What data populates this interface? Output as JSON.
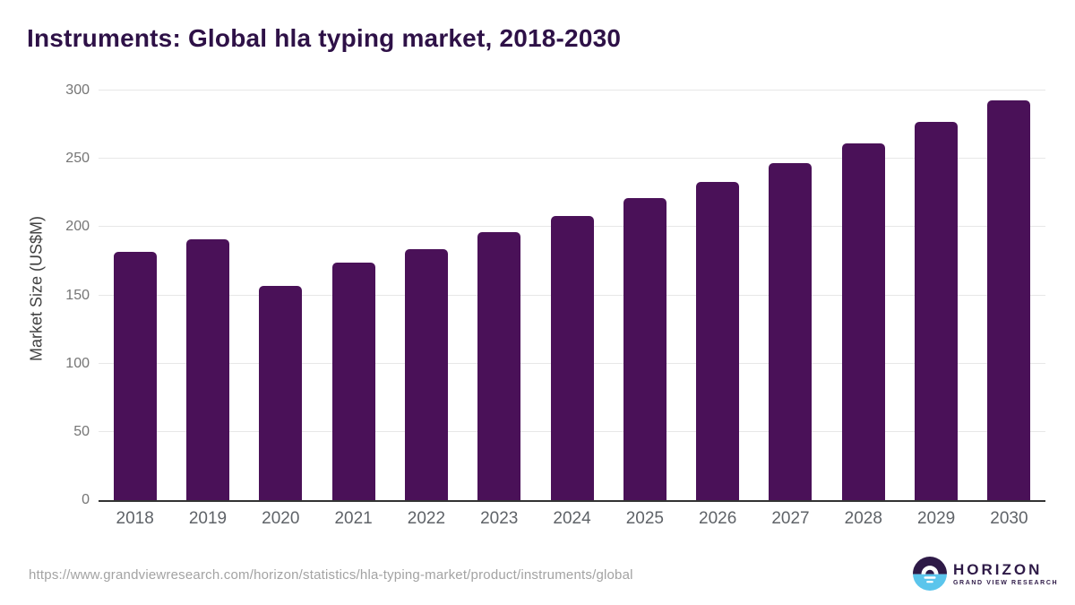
{
  "title": "Instruments: Global hla typing market, 2018-2030",
  "chart_data": {
    "type": "bar",
    "title": "Instruments: Global hla typing market, 2018-2030",
    "categories": [
      "2018",
      "2019",
      "2020",
      "2021",
      "2022",
      "2023",
      "2024",
      "2025",
      "2026",
      "2027",
      "2028",
      "2029",
      "2030"
    ],
    "values": [
      182,
      191,
      157,
      174,
      184,
      196,
      208,
      221,
      233,
      247,
      261,
      277,
      293
    ],
    "xlabel": "",
    "ylabel": "Market Size (US$M)",
    "ylim": [
      0,
      300
    ],
    "yticks": [
      0,
      50,
      100,
      150,
      200,
      250,
      300
    ],
    "grid": true,
    "legend": false,
    "bar_corner_radius": "rounded-top"
  },
  "footer": {
    "source_url": "https://www.grandviewresearch.com/horizon/statistics/hla-typing-market/product/instruments/global",
    "logo": {
      "brand": "HORIZON",
      "sub_brand": "GRAND VIEW RESEARCH"
    }
  },
  "colors": {
    "bar": "#4A1158",
    "title_text": "#2E1147",
    "gridline": "#E7E7E7",
    "axis_line": "#333333",
    "y_tick_text": "#757575",
    "x_tick_text": "#5F6368",
    "url_text": "#A3A3A3",
    "logo_purple": "#2E1A47",
    "logo_blue": "#5BC5EC"
  }
}
